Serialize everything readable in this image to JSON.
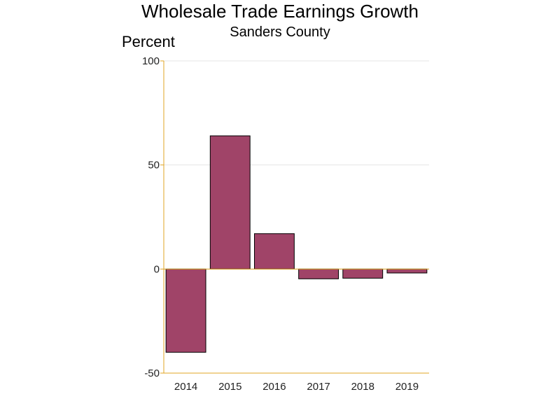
{
  "chart_data": {
    "type": "bar",
    "title": "Wholesale Trade Earnings Growth",
    "subtitle": "Sanders County",
    "ylabel": "Percent",
    "xlabel": "",
    "categories": [
      "2014",
      "2015",
      "2016",
      "2017",
      "2018",
      "2019"
    ],
    "values": [
      -40,
      64,
      17,
      -4.7,
      -4.4,
      -1.9
    ],
    "ylim": [
      -50,
      100
    ],
    "yticks": [
      -50,
      0,
      50,
      100
    ],
    "grid": true,
    "colors": {
      "bar": "#a04468",
      "bar_outline": "#000000",
      "axis": "#e0a526",
      "grid": "#e6e6e6"
    }
  }
}
